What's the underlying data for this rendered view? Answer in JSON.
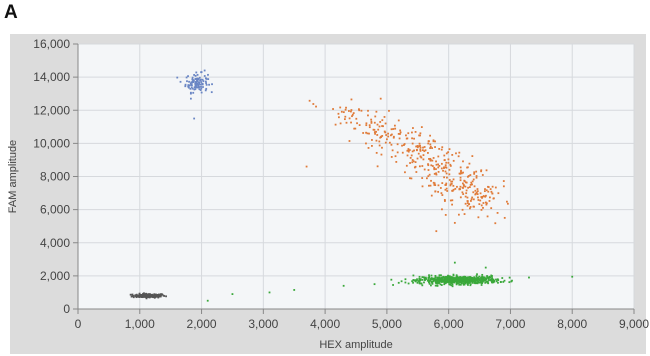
{
  "panel_label": "A",
  "chart_data": {
    "type": "scatter",
    "title": "",
    "xlabel": "HEX amplitude",
    "ylabel": "FAM amplitude",
    "xlim": [
      0,
      9000
    ],
    "ylim": [
      0,
      16000
    ],
    "x_ticks": [
      0,
      1000,
      2000,
      3000,
      4000,
      5000,
      6000,
      7000,
      8000,
      9000
    ],
    "x_tick_labels": [
      "0",
      "1,000",
      "2,000",
      "3,000",
      "4,000",
      "5,000",
      "6,000",
      "7,000",
      "8,000",
      "9,000"
    ],
    "y_ticks": [
      0,
      2000,
      4000,
      6000,
      8000,
      10000,
      12000,
      14000,
      16000
    ],
    "y_tick_labels": [
      "0",
      "2,000",
      "4,000",
      "6,000",
      "8,000",
      "10,000",
      "12,000",
      "14,000",
      "16,000"
    ],
    "grid": true,
    "background": "#f4f6f8",
    "outer_background": "#dcdcdc",
    "series": [
      {
        "color": "#555555",
        "clusters": [
          {
            "x_center": 1150,
            "y_center": 800,
            "x_spread": 130,
            "y_spread": 60,
            "count": 160
          }
        ]
      },
      {
        "color": "#6a86c4",
        "clusters": [
          {
            "x_center": 1920,
            "y_center": 13650,
            "x_spread": 90,
            "y_spread": 280,
            "count": 110
          }
        ],
        "points": [
          [
            1880,
            11500
          ],
          [
            2050,
            14400
          ]
        ]
      },
      {
        "color": "#e07b39",
        "arc": {
          "x_start": 4100,
          "y_start": 12100,
          "x_end": 6500,
          "y_end": 6300,
          "perp_spread": 300,
          "count": 420
        },
        "points": [
          [
            4900,
            12700
          ],
          [
            3700,
            8600
          ],
          [
            5800,
            4700
          ],
          [
            6100,
            5200
          ]
        ]
      },
      {
        "color": "#3aa83a",
        "clusters": [
          {
            "x_center": 6200,
            "y_center": 1750,
            "x_spread": 300,
            "y_spread": 120,
            "count": 520
          },
          {
            "x_center": 5800,
            "y_center": 1700,
            "x_spread": 250,
            "y_spread": 130,
            "count": 80
          }
        ],
        "points": [
          [
            4300,
            1400
          ],
          [
            4800,
            1500
          ],
          [
            5100,
            1450
          ],
          [
            5300,
            1600
          ],
          [
            7300,
            1900
          ],
          [
            8000,
            1950
          ],
          [
            6100,
            2800
          ],
          [
            6600,
            2500
          ],
          [
            2100,
            500
          ],
          [
            2500,
            900
          ],
          [
            3100,
            1000
          ],
          [
            3500,
            1150
          ]
        ]
      }
    ]
  }
}
